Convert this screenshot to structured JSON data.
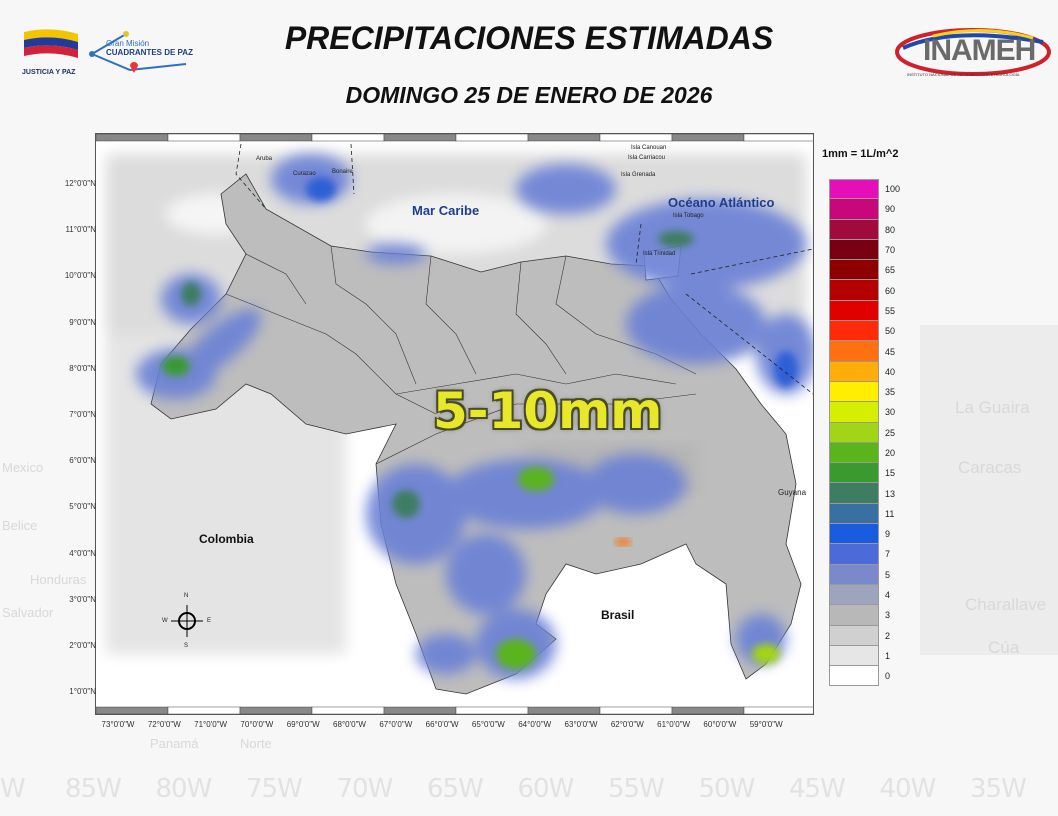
{
  "header": {
    "title": "PRECIPITACIONES ESTIMADAS",
    "subtitle": "DOMINGO 25 DE ENERO DE 2026"
  },
  "logos": {
    "left1_text": "JUSTICIA Y PAZ",
    "left2_line1": "Gran Misión",
    "left2_line2": "CUADRANTES DE PAZ",
    "right_text": "INAMEH",
    "right_subtext": "INSTITUTO NACIONAL DE METEOROLOGÍA E HIDROLOGÍA"
  },
  "legend": {
    "title": "1mm = 1L/m^2",
    "items": [
      {
        "label": "100",
        "color": "#e40fb8"
      },
      {
        "label": "90",
        "color": "#c8087a"
      },
      {
        "label": "80",
        "color": "#a00a3c"
      },
      {
        "label": "70",
        "color": "#780010"
      },
      {
        "label": "65",
        "color": "#8c0000"
      },
      {
        "label": "60",
        "color": "#b40000"
      },
      {
        "label": "55",
        "color": "#e00000"
      },
      {
        "label": "50",
        "color": "#ff2a0a"
      },
      {
        "label": "45",
        "color": "#ff7010"
      },
      {
        "label": "40",
        "color": "#ffad0a"
      },
      {
        "label": "35",
        "color": "#ffee00"
      },
      {
        "label": "30",
        "color": "#d6ee00"
      },
      {
        "label": "25",
        "color": "#a2d418"
      },
      {
        "label": "20",
        "color": "#5ab41c"
      },
      {
        "label": "15",
        "color": "#3a9a30"
      },
      {
        "label": "13",
        "color": "#3e7d62"
      },
      {
        "label": "11",
        "color": "#3a6fa2"
      },
      {
        "label": "9",
        "color": "#1a5ce0"
      },
      {
        "label": "7",
        "color": "#4c6ad8"
      },
      {
        "label": "5",
        "color": "#7a88cc"
      },
      {
        "label": "4",
        "color": "#9ea4bc"
      },
      {
        "label": "3",
        "color": "#b8b8b8"
      },
      {
        "label": "2",
        "color": "#d0d0d0"
      },
      {
        "label": "1",
        "color": "#e6e6e6"
      },
      {
        "label": "0",
        "color": "#ffffff"
      }
    ]
  },
  "map": {
    "lat_labels": [
      "12°0'0\"N",
      "11°0'0\"N",
      "10°0'0\"N",
      "9°0'0\"N",
      "8°0'0\"N",
      "7°0'0\"N",
      "6°0'0\"N",
      "5°0'0\"N",
      "4°0'0\"N",
      "3°0'0\"N",
      "2°0'0\"N",
      "1°0'0\"N"
    ],
    "lon_labels": [
      "73°0'0\"W",
      "72°0'0\"W",
      "71°0'0\"W",
      "70°0'0\"W",
      "69°0'0\"W",
      "68°0'0\"W",
      "67°0'0\"W",
      "66°0'0\"W",
      "65°0'0\"W",
      "64°0'0\"W",
      "63°0'0\"W",
      "62°0'0\"W",
      "61°0'0\"W",
      "60°0'0\"W",
      "59°0'0\"W"
    ],
    "seas": {
      "caribe": "Mar Caribe",
      "atlantico": "Océano Atlántico"
    },
    "countries": {
      "colombia": "Colombia",
      "brasil": "Brasil",
      "guyana": "Guyana"
    },
    "islands": {
      "aruba": "Aruba",
      "curazao": "Curazao",
      "bonaire": "Bonaire",
      "canouan": "Isla Canouan",
      "carriacou": "Isla Carriacou",
      "grenada": "Isla Grenada",
      "tobago": "Isla Tobago",
      "trinidad": "Isla Trinidad"
    },
    "compass": {
      "n": "N",
      "s": "S",
      "e": "E",
      "w": "W"
    },
    "highlight": "5-10mm",
    "highlight_color": "#e8e82a"
  },
  "background": {
    "lon_watermarks": [
      "W",
      "85W",
      "80W",
      "75W",
      "70W",
      "65W",
      "60W",
      "55W",
      "50W",
      "45W",
      "40W",
      "35W"
    ],
    "places": [
      "La Guaira",
      "Caracas",
      "Charallave",
      "Cúa",
      "Mexico",
      "Belice",
      "Honduras",
      "Salvador",
      "Panamá",
      "Norte"
    ]
  }
}
